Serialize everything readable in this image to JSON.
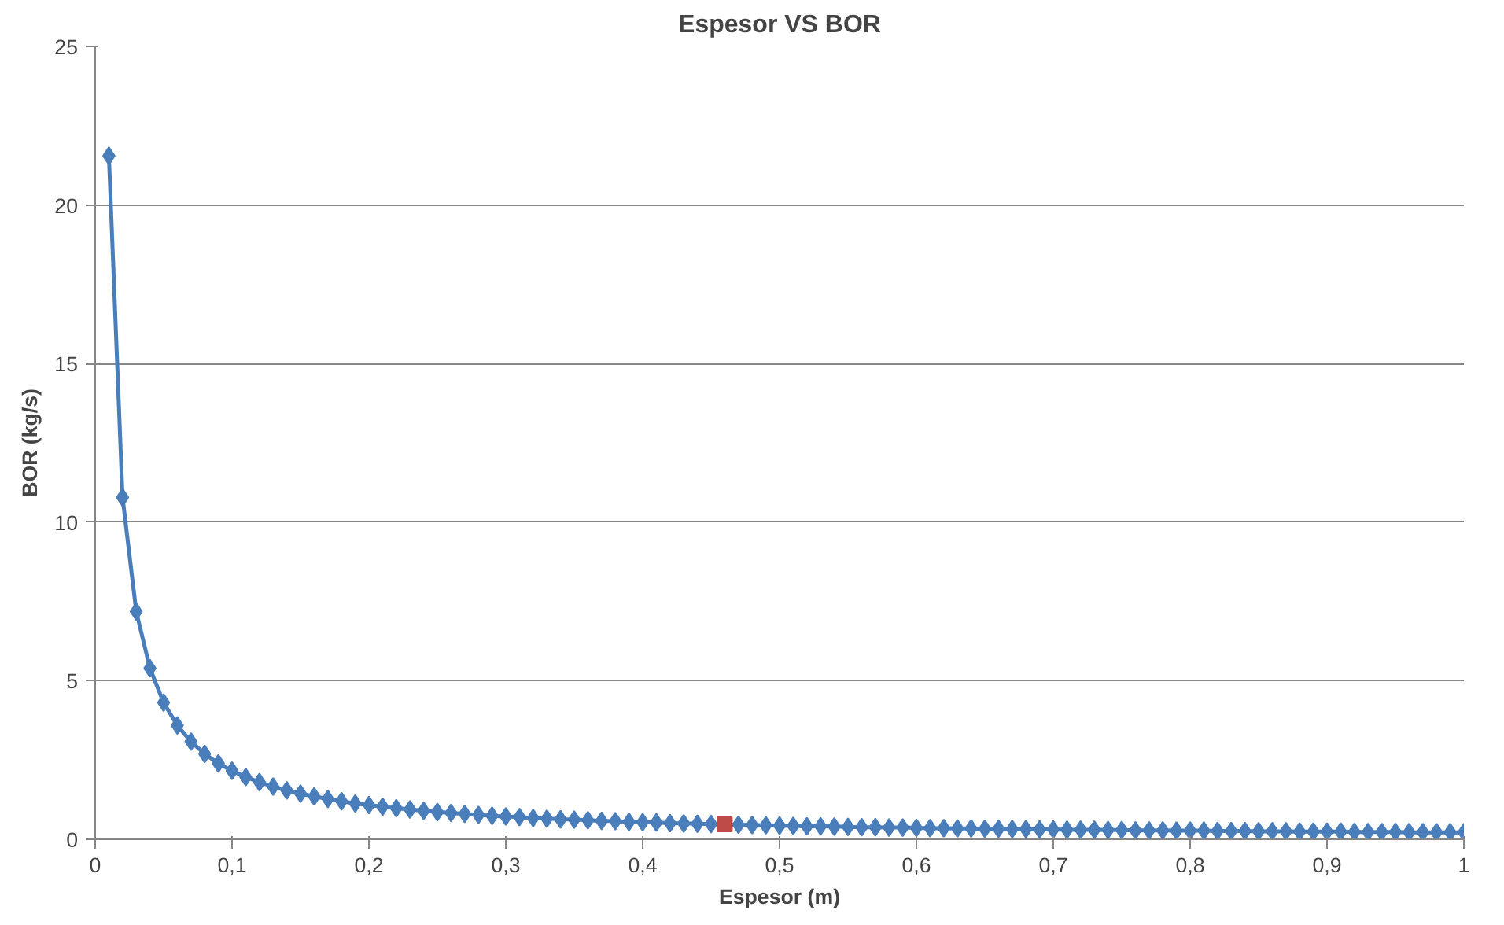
{
  "chart_data": {
    "type": "line",
    "title": "Espesor VS BOR",
    "xlabel": "Espesor (m)",
    "ylabel": "BOR (kg/s)",
    "x": [
      0.01,
      0.02,
      0.03,
      0.04,
      0.05,
      0.06,
      0.07,
      0.08,
      0.09,
      0.1,
      0.11,
      0.12,
      0.13,
      0.14,
      0.15,
      0.16,
      0.17,
      0.18,
      0.19,
      0.2,
      0.21,
      0.22,
      0.23,
      0.24,
      0.25,
      0.26,
      0.27,
      0.28,
      0.29,
      0.3,
      0.31,
      0.32,
      0.33,
      0.34,
      0.35,
      0.36,
      0.37,
      0.38,
      0.39,
      0.4,
      0.41,
      0.42,
      0.43,
      0.44,
      0.45,
      0.46,
      0.47,
      0.48,
      0.49,
      0.5,
      0.51,
      0.52,
      0.53,
      0.54,
      0.55,
      0.56,
      0.57,
      0.58,
      0.59,
      0.6,
      0.61,
      0.62,
      0.63,
      0.64,
      0.65,
      0.66,
      0.67,
      0.68,
      0.69,
      0.7,
      0.71,
      0.72,
      0.73,
      0.74,
      0.75,
      0.76,
      0.77,
      0.78,
      0.79,
      0.8,
      0.81,
      0.82,
      0.83,
      0.84,
      0.85,
      0.86,
      0.87,
      0.88,
      0.89,
      0.9,
      0.91,
      0.92,
      0.93,
      0.94,
      0.95,
      0.96,
      0.97,
      0.98,
      0.99,
      1.0
    ],
    "series": [
      {
        "color": "#4a7ebb",
        "marker": "diamond",
        "values": [
          21.55,
          10.78,
          7.18,
          5.39,
          4.31,
          3.59,
          3.08,
          2.69,
          2.39,
          2.16,
          1.96,
          1.8,
          1.66,
          1.54,
          1.44,
          1.35,
          1.27,
          1.2,
          1.13,
          1.08,
          1.03,
          0.98,
          0.94,
          0.9,
          0.86,
          0.83,
          0.8,
          0.77,
          0.74,
          0.72,
          0.7,
          0.67,
          0.65,
          0.63,
          0.62,
          0.6,
          0.58,
          0.57,
          0.55,
          0.54,
          0.53,
          0.51,
          0.5,
          0.49,
          0.48,
          null,
          0.46,
          0.45,
          0.44,
          0.43,
          0.42,
          0.41,
          0.41,
          0.4,
          0.39,
          0.38,
          0.38,
          0.37,
          0.37,
          0.36,
          0.35,
          0.35,
          0.34,
          0.34,
          0.33,
          0.33,
          0.32,
          0.32,
          0.31,
          0.31,
          0.3,
          0.3,
          0.3,
          0.29,
          0.29,
          0.28,
          0.28,
          0.28,
          0.27,
          0.27,
          0.27,
          0.26,
          0.26,
          0.26,
          0.25,
          0.25,
          0.25,
          0.24,
          0.24,
          0.24,
          0.24,
          0.23,
          0.23,
          0.23,
          0.23,
          0.22,
          0.22,
          0.22,
          0.22,
          0.22
        ]
      },
      {
        "type": "scatter",
        "marker": "square",
        "color": "#be4b48",
        "x": [
          0.46
        ],
        "values": [
          0.47
        ]
      }
    ],
    "xlim": [
      0,
      1
    ],
    "ylim": [
      0,
      25
    ],
    "xticks": [
      0,
      {
        "value": 0.1,
        "label": "0,1"
      },
      {
        "value": 0.2,
        "label": "0,2"
      },
      {
        "value": 0.3,
        "label": "0,3"
      },
      {
        "value": 0.4,
        "label": "0,4"
      },
      {
        "value": 0.5,
        "label": "0,5"
      },
      {
        "value": 0.6,
        "label": "0,6"
      },
      {
        "value": 0.7,
        "label": "0,7"
      },
      {
        "value": 0.8,
        "label": "0,8"
      },
      {
        "value": 0.9,
        "label": "0,9"
      },
      1
    ],
    "yticks": [
      0,
      5,
      10,
      15,
      20,
      25
    ],
    "grid": "y"
  }
}
